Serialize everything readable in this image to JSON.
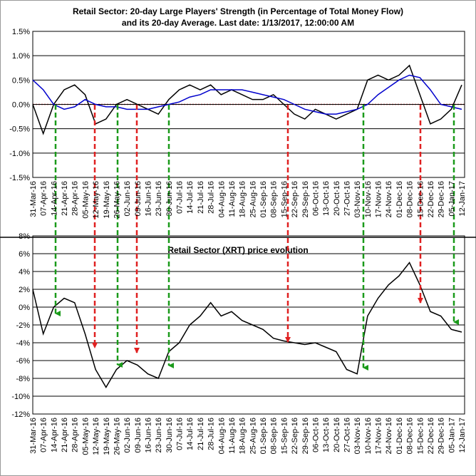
{
  "chart_data": [
    {
      "type": "line",
      "title": "Retail Sector: 20-day Large Players' Strength (in Percentage of Total Money Flow)",
      "subtitle": "and its 20-day Average. Last date: 1/13/2017, 12:00:00 AM",
      "categories": [
        "31-Mar-16",
        "07-Apr-16",
        "14-Apr-16",
        "21-Apr-16",
        "28-Apr-16",
        "05-May-16",
        "12-May-16",
        "19-May-16",
        "26-May-16",
        "02-Jun-16",
        "09-Jun-16",
        "16-Jun-16",
        "23-Jun-16",
        "30-Jun-16",
        "07-Jul-16",
        "14-Jul-16",
        "21-Jul-16",
        "28-Jul-16",
        "04-Aug-16",
        "11-Aug-16",
        "18-Aug-16",
        "25-Aug-16",
        "01-Sep-16",
        "08-Sep-16",
        "15-Sep-16",
        "22-Sep-16",
        "29-Sep-16",
        "06-Oct-16",
        "13-Oct-16",
        "20-Oct-16",
        "27-Oct-16",
        "03-Nov-16",
        "10-Nov-16",
        "17-Nov-16",
        "24-Nov-16",
        "01-Dec-16",
        "08-Dec-16",
        "15-Dec-16",
        "22-Dec-16",
        "29-Dec-16",
        "05-Jan-17",
        "12-Jan-17"
      ],
      "series": [
        {
          "color": "#000000",
          "values": [
            0.0,
            -0.6,
            0.0,
            0.3,
            0.4,
            0.2,
            -0.4,
            -0.3,
            0.0,
            0.1,
            0.0,
            -0.1,
            -0.2,
            0.1,
            0.3,
            0.4,
            0.3,
            0.4,
            0.2,
            0.3,
            0.2,
            0.1,
            0.1,
            0.2,
            0.0,
            -0.2,
            -0.3,
            -0.1,
            -0.2,
            -0.3,
            -0.2,
            -0.1,
            0.5,
            0.6,
            0.5,
            0.6,
            0.8,
            0.2,
            -0.4,
            -0.3,
            -0.1,
            0.4
          ]
        },
        {
          "color": "#0000cc",
          "values": [
            0.5,
            0.3,
            0.0,
            -0.1,
            -0.05,
            0.1,
            0.0,
            -0.05,
            -0.05,
            -0.1,
            -0.1,
            -0.1,
            -0.05,
            0.0,
            0.05,
            0.15,
            0.2,
            0.3,
            0.3,
            0.3,
            0.3,
            0.25,
            0.2,
            0.15,
            0.1,
            0.0,
            -0.1,
            -0.15,
            -0.2,
            -0.2,
            -0.15,
            -0.1,
            0.0,
            0.2,
            0.35,
            0.5,
            0.6,
            0.55,
            0.3,
            0.0,
            -0.05,
            -0.1
          ]
        }
      ],
      "ylim": [
        -1.5,
        1.5
      ],
      "yticks": [
        {
          "value": -1.5,
          "label": "-1.5%"
        },
        {
          "value": -1.0,
          "label": "-1.0%"
        },
        {
          "value": -0.5,
          "label": "-0.5%"
        },
        {
          "value": 0,
          "label": "0.0%"
        },
        {
          "value": 0.5,
          "label": "0.5%"
        },
        {
          "value": 1.0,
          "label": "1.0%"
        },
        {
          "value": 1.5,
          "label": "1.5%"
        }
      ],
      "grid": true
    },
    {
      "type": "line",
      "title": "Retail Sector (XRT) price evolution",
      "categories": [
        "31-Mar-16",
        "07-Apr-16",
        "14-Apr-16",
        "21-Apr-16",
        "28-Apr-16",
        "05-May-16",
        "12-May-16",
        "19-May-16",
        "26-May-16",
        "02-Jun-16",
        "09-Jun-16",
        "16-Jun-16",
        "23-Jun-16",
        "30-Jun-16",
        "07-Jul-16",
        "14-Jul-16",
        "21-Jul-16",
        "28-Jul-16",
        "04-Aug-16",
        "11-Aug-16",
        "18-Aug-16",
        "25-Aug-16",
        "01-Sep-16",
        "08-Sep-16",
        "15-Sep-16",
        "22-Sep-16",
        "29-Sep-16",
        "06-Oct-16",
        "13-Oct-16",
        "20-Oct-16",
        "27-Oct-16",
        "03-Nov-16",
        "10-Nov-16",
        "17-Nov-16",
        "24-Nov-16",
        "01-Dec-16",
        "08-Dec-16",
        "15-Dec-16",
        "22-Dec-16",
        "29-Dec-16",
        "05-Jan-17",
        "12-Jan-17"
      ],
      "series": [
        {
          "color": "#000000",
          "values": [
            2,
            -3,
            0,
            1,
            0.5,
            -3,
            -7,
            -9,
            -7,
            -6,
            -6.5,
            -7.5,
            -8,
            -5,
            -4,
            -2,
            -1,
            0.5,
            -1,
            -0.5,
            -1.5,
            -2,
            -2.5,
            -3.5,
            -3.8,
            -4,
            -4.2,
            -4,
            -4.5,
            -5,
            -7,
            -7.5,
            -1,
            1,
            2.5,
            3.5,
            5,
            2.5,
            -0.5,
            -1,
            -2.5,
            -2.8
          ]
        }
      ],
      "ylim": [
        -12,
        8
      ],
      "yticks": [
        {
          "value": -12,
          "label": "-12%"
        },
        {
          "value": -10,
          "label": "-10%"
        },
        {
          "value": -8,
          "label": "-8%"
        },
        {
          "value": -6,
          "label": "-6%"
        },
        {
          "value": -4,
          "label": "-4%"
        },
        {
          "value": -2,
          "label": "-2%"
        },
        {
          "value": 0,
          "label": "0%"
        },
        {
          "value": 2,
          "label": "2%"
        },
        {
          "value": 4,
          "label": "4%"
        },
        {
          "value": 6,
          "label": "6%"
        },
        {
          "value": 8,
          "label": "8%"
        }
      ],
      "grid": true
    }
  ]
}
